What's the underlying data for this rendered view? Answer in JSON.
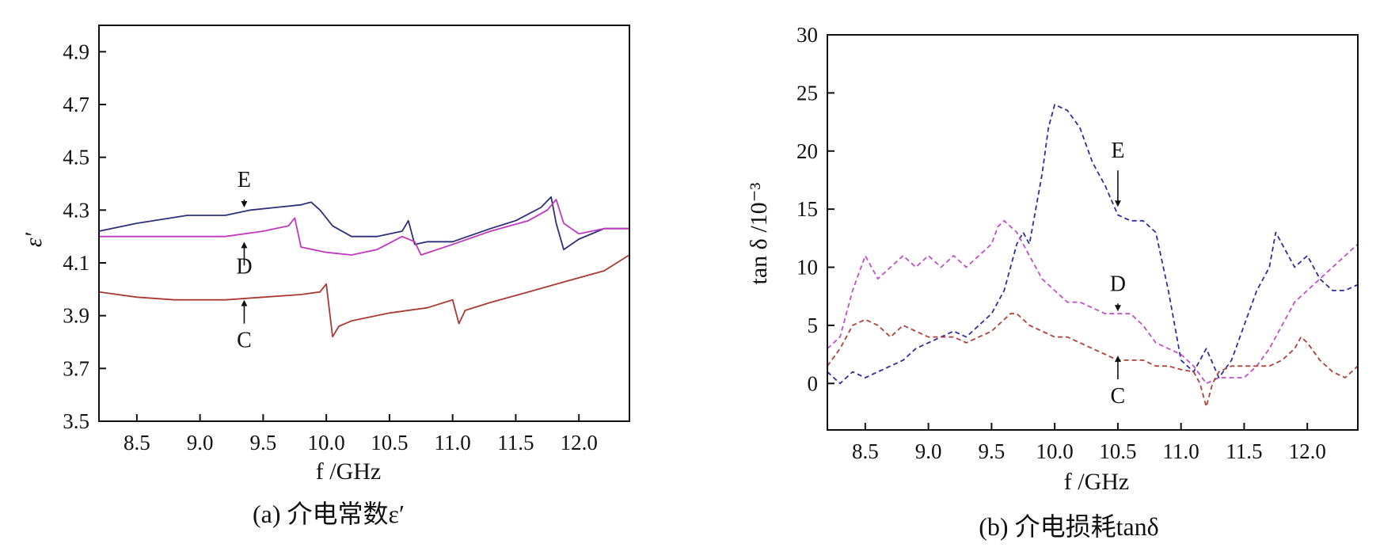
{
  "chart_data": [
    {
      "type": "line",
      "caption": "(a)  介电常数ε′",
      "xlabel": "f /GHz",
      "ylabel": "ε′",
      "xlim": [
        8.2,
        12.4
      ],
      "ylim": [
        3.5,
        5.0
      ],
      "xticks": [
        8.5,
        9.0,
        9.5,
        10.0,
        10.5,
        11.0,
        11.5,
        12.0
      ],
      "xtick_labels": [
        "8.5",
        "9.0",
        "9.5",
        "10.0",
        "10.5",
        "11.0",
        "11.5",
        "12.0"
      ],
      "yticks": [
        3.5,
        3.7,
        3.9,
        4.1,
        4.3,
        4.5,
        4.7,
        4.9
      ],
      "ytick_labels": [
        "3.5",
        "3.7",
        "3.9",
        "4.1",
        "4.3",
        "4.5",
        "4.7",
        "4.9"
      ],
      "series": [
        {
          "name": "E",
          "color": "#2e2f7a",
          "style": "solid",
          "x": [
            8.2,
            8.5,
            8.9,
            9.2,
            9.4,
            9.6,
            9.8,
            9.88,
            9.95,
            10.05,
            10.2,
            10.4,
            10.6,
            10.65,
            10.7,
            10.8,
            11.0,
            11.3,
            11.5,
            11.7,
            11.78,
            11.82,
            11.88,
            12.0,
            12.2,
            12.4
          ],
          "y": [
            4.22,
            4.25,
            4.28,
            4.28,
            4.3,
            4.31,
            4.32,
            4.33,
            4.3,
            4.24,
            4.2,
            4.2,
            4.22,
            4.26,
            4.17,
            4.18,
            4.18,
            4.23,
            4.26,
            4.31,
            4.35,
            4.25,
            4.15,
            4.19,
            4.23,
            4.23
          ]
        },
        {
          "name": "D",
          "color": "#c038c0",
          "style": "solid",
          "x": [
            8.2,
            8.5,
            8.9,
            9.2,
            9.5,
            9.7,
            9.75,
            9.8,
            10.0,
            10.2,
            10.4,
            10.6,
            10.7,
            10.75,
            11.0,
            11.3,
            11.6,
            11.75,
            11.82,
            11.88,
            12.0,
            12.2,
            12.4
          ],
          "y": [
            4.2,
            4.2,
            4.2,
            4.2,
            4.22,
            4.24,
            4.27,
            4.16,
            4.14,
            4.13,
            4.15,
            4.2,
            4.18,
            4.13,
            4.17,
            4.22,
            4.26,
            4.3,
            4.34,
            4.25,
            4.21,
            4.23,
            4.23
          ]
        },
        {
          "name": "C",
          "color": "#a83a32",
          "style": "solid",
          "x": [
            8.2,
            8.5,
            8.8,
            9.2,
            9.5,
            9.8,
            9.95,
            10.0,
            10.05,
            10.1,
            10.2,
            10.5,
            10.8,
            11.0,
            11.05,
            11.1,
            11.3,
            11.6,
            11.9,
            12.2,
            12.4
          ],
          "y": [
            3.99,
            3.97,
            3.96,
            3.96,
            3.97,
            3.98,
            3.99,
            4.02,
            3.82,
            3.86,
            3.88,
            3.91,
            3.93,
            3.96,
            3.87,
            3.92,
            3.95,
            3.99,
            4.03,
            4.07,
            4.13
          ]
        }
      ],
      "annotations": [
        {
          "text": "E",
          "arrow": "down",
          "target_x": 9.35,
          "target_y": 4.31
        },
        {
          "text": "D",
          "arrow": "up",
          "target_x": 9.35,
          "target_y": 4.18
        },
        {
          "text": "C",
          "arrow": "up",
          "target_x": 9.35,
          "target_y": 3.96
        }
      ]
    },
    {
      "type": "line",
      "caption": "(b)  介电损耗tanδ",
      "xlabel": "f /GHz",
      "ylabel": "tan δ /10⁻³",
      "xlim": [
        8.2,
        12.4
      ],
      "ylim": [
        -4,
        30
      ],
      "xticks": [
        8.5,
        9.0,
        9.5,
        10.0,
        10.5,
        11.0,
        11.5,
        12.0
      ],
      "xtick_labels": [
        "8.5",
        "9.0",
        "9.5",
        "10.0",
        "10.5",
        "11.0",
        "11.5",
        "12.0"
      ],
      "yticks": [
        0,
        5,
        10,
        15,
        20,
        25,
        30
      ],
      "ytick_labels": [
        "0",
        "5",
        "10",
        "15",
        "20",
        "25",
        "30"
      ],
      "series": [
        {
          "name": "E",
          "color": "#2e2f9a",
          "style": "dashed",
          "x": [
            8.2,
            8.3,
            8.4,
            8.5,
            8.6,
            8.7,
            8.8,
            8.9,
            9.0,
            9.1,
            9.2,
            9.3,
            9.4,
            9.5,
            9.6,
            9.7,
            9.75,
            9.8,
            9.85,
            9.9,
            9.95,
            10.0,
            10.1,
            10.2,
            10.3,
            10.4,
            10.5,
            10.6,
            10.7,
            10.8,
            10.9,
            11.0,
            11.1,
            11.2,
            11.3,
            11.4,
            11.5,
            11.6,
            11.7,
            11.75,
            11.8,
            11.9,
            12.0,
            12.1,
            12.2,
            12.3,
            12.4
          ],
          "y": [
            1,
            0,
            1,
            0.5,
            1,
            1.5,
            2,
            3,
            3.5,
            4,
            4.5,
            4,
            5,
            6,
            8,
            12,
            13,
            12,
            15,
            18,
            22,
            24,
            23.5,
            22,
            19,
            17,
            14.5,
            14,
            14,
            13,
            8,
            2,
            1,
            3,
            0.5,
            2,
            5,
            8,
            10,
            13,
            12,
            10,
            11,
            9,
            8,
            8,
            8.5
          ]
        },
        {
          "name": "D",
          "color": "#c050c8",
          "style": "dashed",
          "x": [
            8.2,
            8.3,
            8.4,
            8.5,
            8.6,
            8.7,
            8.8,
            8.9,
            9.0,
            9.1,
            9.2,
            9.3,
            9.4,
            9.5,
            9.55,
            9.6,
            9.7,
            9.8,
            9.9,
            10.0,
            10.1,
            10.2,
            10.3,
            10.4,
            10.5,
            10.6,
            10.7,
            10.8,
            10.9,
            11.0,
            11.1,
            11.2,
            11.3,
            11.4,
            11.5,
            11.6,
            11.7,
            11.8,
            11.9,
            12.0,
            12.1,
            12.2,
            12.3,
            12.4
          ],
          "y": [
            3,
            4,
            8,
            11,
            9,
            10,
            11,
            10,
            11,
            10,
            11,
            10,
            11,
            12,
            13.5,
            14,
            13,
            11,
            9,
            8,
            7,
            7,
            6.5,
            6,
            6,
            6,
            5,
            3.5,
            3,
            2.5,
            1.5,
            0,
            0.5,
            0.5,
            0.5,
            1.5,
            3,
            5,
            7,
            8,
            9,
            10,
            11,
            12
          ]
        },
        {
          "name": "C",
          "color": "#b04038",
          "style": "dashed",
          "x": [
            8.2,
            8.3,
            8.4,
            8.5,
            8.6,
            8.7,
            8.8,
            8.9,
            9.0,
            9.1,
            9.2,
            9.3,
            9.4,
            9.5,
            9.6,
            9.65,
            9.7,
            9.8,
            9.9,
            10.0,
            10.1,
            10.2,
            10.3,
            10.4,
            10.5,
            10.6,
            10.7,
            10.8,
            10.9,
            11.0,
            11.1,
            11.15,
            11.2,
            11.25,
            11.3,
            11.4,
            11.5,
            11.6,
            11.7,
            11.8,
            11.9,
            11.95,
            12.0,
            12.1,
            12.2,
            12.3,
            12.4
          ],
          "y": [
            1.5,
            3,
            5,
            5.5,
            5,
            4,
            5,
            4.5,
            4,
            4,
            4,
            3.5,
            4,
            4.5,
            5.5,
            6,
            6,
            5,
            4.5,
            4,
            4,
            3.5,
            3,
            2.5,
            2,
            2,
            2,
            1.5,
            1.5,
            1.2,
            1,
            0,
            -2,
            0,
            1,
            1.5,
            1.5,
            1.5,
            1.5,
            2,
            3,
            4,
            3.5,
            2,
            1,
            0.5,
            1.5
          ]
        }
      ],
      "annotations": [
        {
          "text": "E",
          "arrow": "down",
          "target_x": 10.5,
          "target_y": 15.2
        },
        {
          "text": "D",
          "arrow": "down",
          "target_x": 10.5,
          "target_y": 6.2
        },
        {
          "text": "C",
          "arrow": "up",
          "target_x": 10.5,
          "target_y": 2.4
        }
      ]
    }
  ]
}
